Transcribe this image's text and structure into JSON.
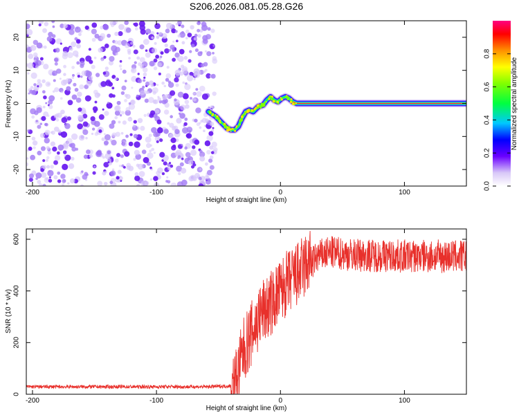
{
  "figure": {
    "title": "S206.2026.081.05.28.G26"
  },
  "chart_data": [
    {
      "type": "heatmap",
      "name": "spectrogram",
      "xlabel": "Height of straight line (km)",
      "ylabel": "Frequency (Hz)",
      "xlim": [
        -205,
        150
      ],
      "ylim": [
        -25,
        25
      ],
      "x_ticks": [
        -200,
        -100,
        0,
        100
      ],
      "y_ticks": [
        -20,
        -10,
        0,
        10,
        20
      ],
      "colorbar": {
        "label": "Normalized spectral amplitude",
        "range": [
          0,
          1
        ],
        "ticks": [
          0.0,
          0.2,
          0.4,
          0.6,
          0.8
        ]
      },
      "noise_region_x": [
        -205,
        -52
      ],
      "signal_track": {
        "x": [
          -58,
          -52,
          -47,
          -43,
          -40,
          -37,
          -34,
          -31,
          -28,
          -25,
          -22,
          -18,
          -14,
          -11,
          -8,
          -5,
          -2,
          1,
          4,
          7,
          10,
          13,
          20,
          60,
          100,
          150
        ],
        "y": [
          -2.5,
          -4,
          -6,
          -7.5,
          -8,
          -8,
          -7,
          -4.5,
          -2.5,
          -2,
          -2.5,
          -1,
          -0.5,
          1,
          2,
          1,
          0.5,
          1.5,
          2,
          1.5,
          0.5,
          0,
          0,
          0,
          0,
          0
        ]
      }
    },
    {
      "type": "line",
      "name": "snr",
      "xlabel": "Height of straight line (km)",
      "ylabel": "SNR (10 * v/v)",
      "xlim": [
        -205,
        150
      ],
      "ylim": [
        0,
        640
      ],
      "x_ticks": [
        -200,
        -100,
        0,
        100
      ],
      "y_ticks": [
        0,
        200,
        400,
        600
      ],
      "series_color": "#e8302b",
      "trend": {
        "x": [
          -205,
          -60,
          -40,
          -35,
          -30,
          -25,
          -20,
          -15,
          -10,
          -5,
          0,
          5,
          10,
          15,
          20,
          25,
          30,
          40,
          60,
          100,
          150
        ],
        "y": [
          22,
          22,
          25,
          80,
          180,
          230,
          280,
          330,
          350,
          380,
          410,
          440,
          460,
          480,
          510,
          530,
          560,
          575,
          565,
          560,
          560
        ]
      }
    }
  ]
}
